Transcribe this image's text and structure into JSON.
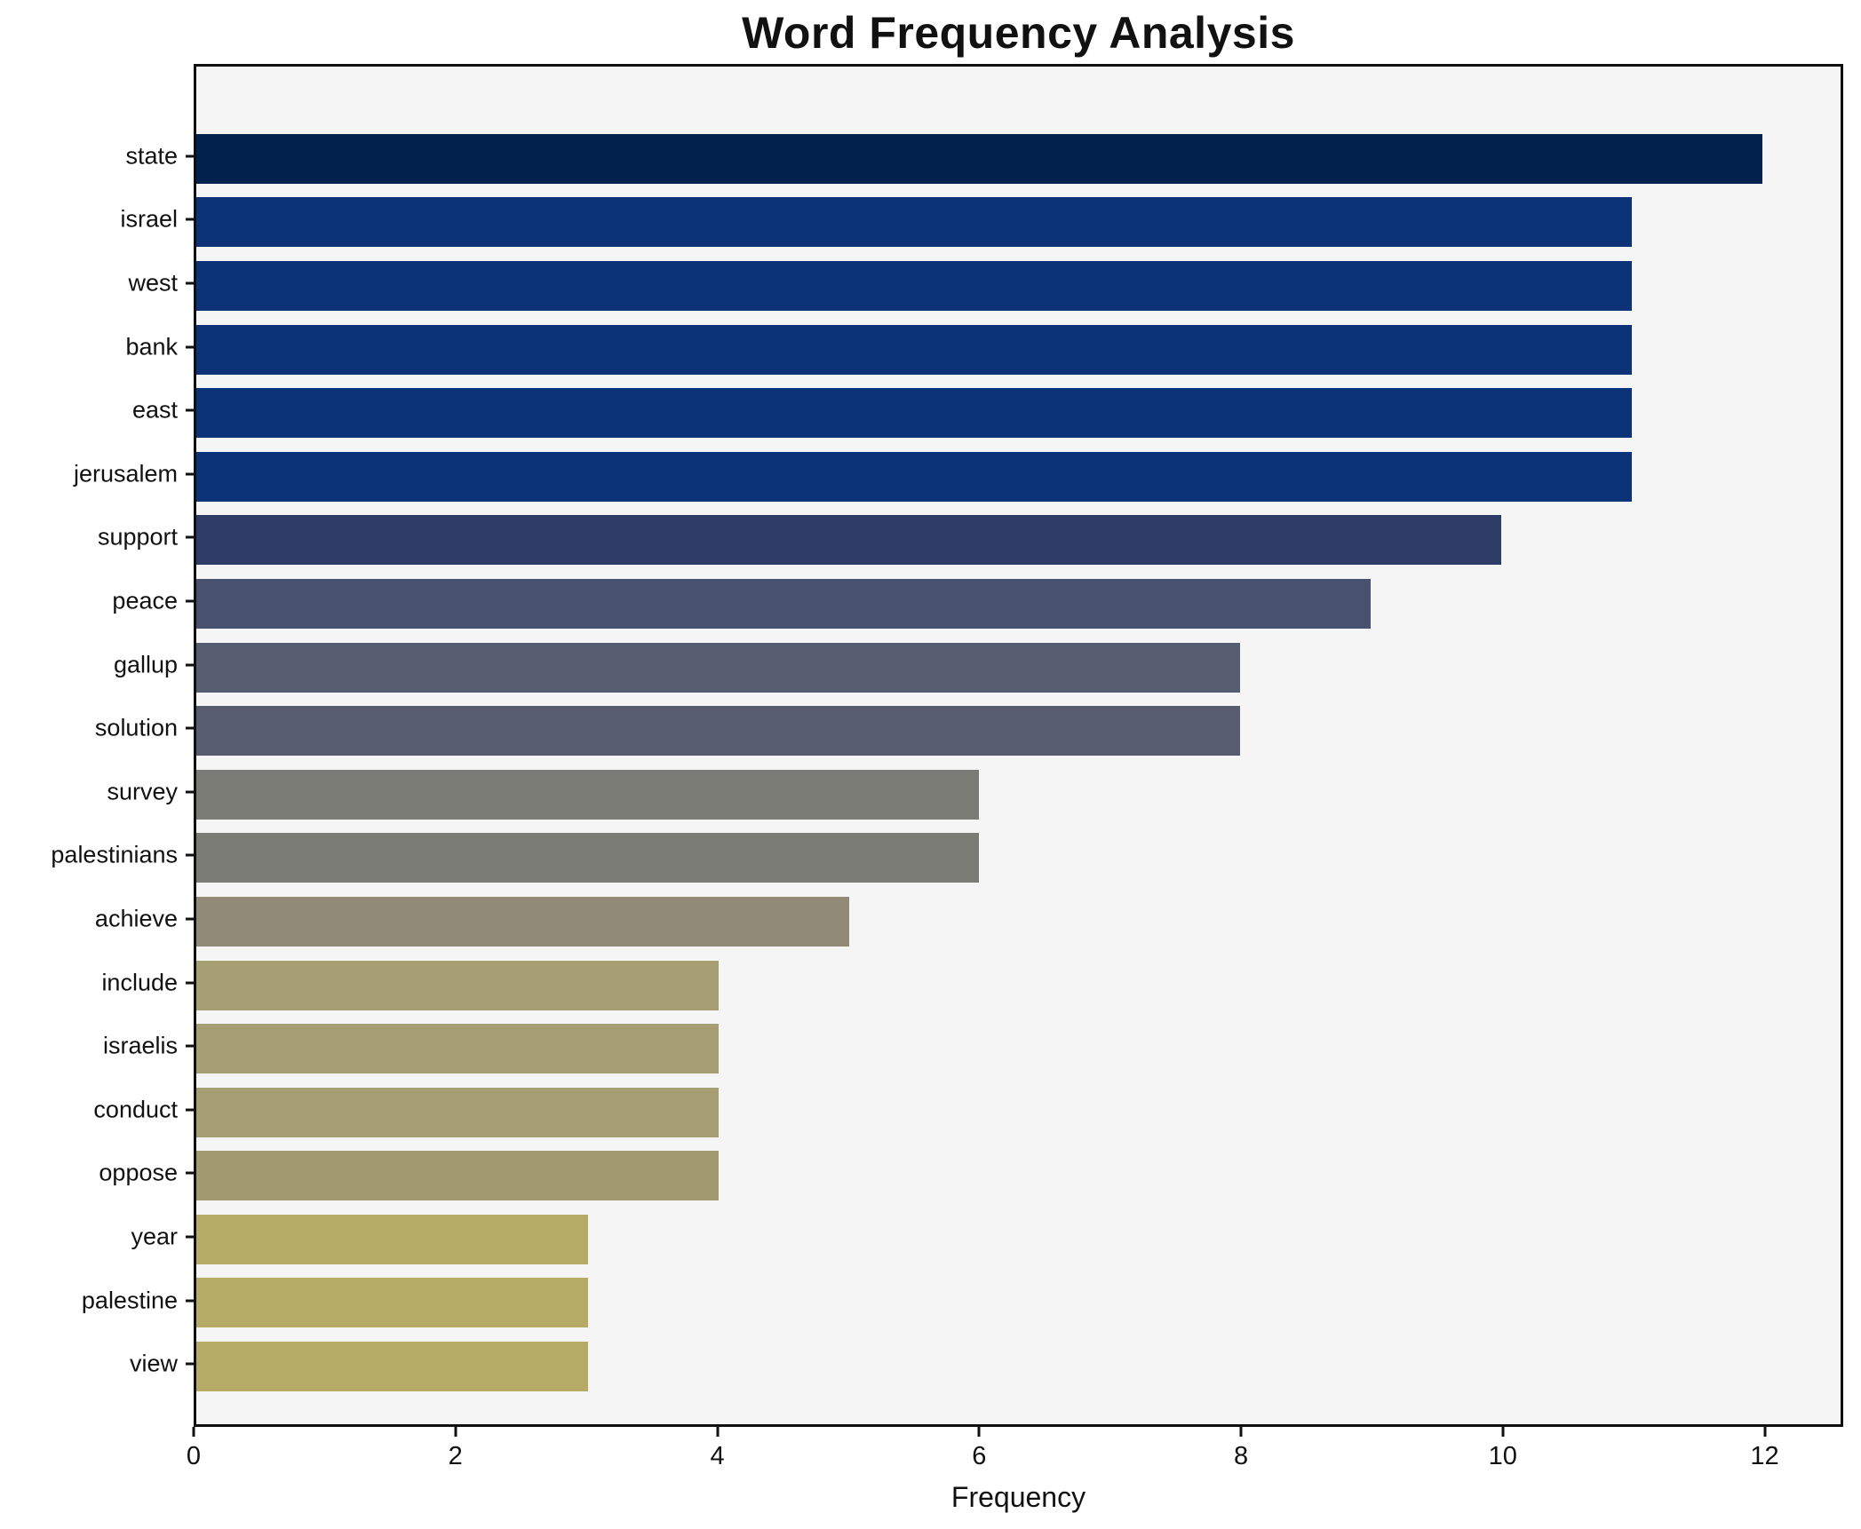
{
  "chart_data": {
    "type": "bar",
    "orientation": "horizontal",
    "title": "Word Frequency Analysis",
    "xlabel": "Frequency",
    "ylabel": "",
    "categories": [
      "state",
      "israel",
      "west",
      "bank",
      "east",
      "jerusalem",
      "support",
      "peace",
      "gallup",
      "solution",
      "survey",
      "palestinians",
      "achieve",
      "include",
      "israelis",
      "conduct",
      "oppose",
      "year",
      "palestine",
      "view"
    ],
    "values": [
      12,
      11,
      11,
      11,
      11,
      11,
      10,
      9,
      8,
      8,
      6,
      6,
      5,
      4,
      4,
      4,
      4,
      3,
      3,
      3
    ],
    "bar_colors": [
      "#02224e",
      "#0c3277",
      "#0c3277",
      "#0c3277",
      "#0c3277",
      "#0c3277",
      "#2e3c68",
      "#475271",
      "#565d6e",
      "#575d6e",
      "#7b7b76",
      "#7b7b76",
      "#918a76",
      "#a69f73",
      "#a69f73",
      "#a69f73",
      "#a39a72",
      "#b5ab67",
      "#b5ab67",
      "#b5ab67"
    ],
    "xlim": [
      0,
      12.6
    ],
    "x_ticks": [
      0,
      2,
      4,
      6,
      8,
      10,
      12
    ],
    "grid": false,
    "legend": null,
    "plot_background": "#f5f5f6",
    "figure_background": "#ffffff",
    "spine_color": "#0f0f0f"
  }
}
